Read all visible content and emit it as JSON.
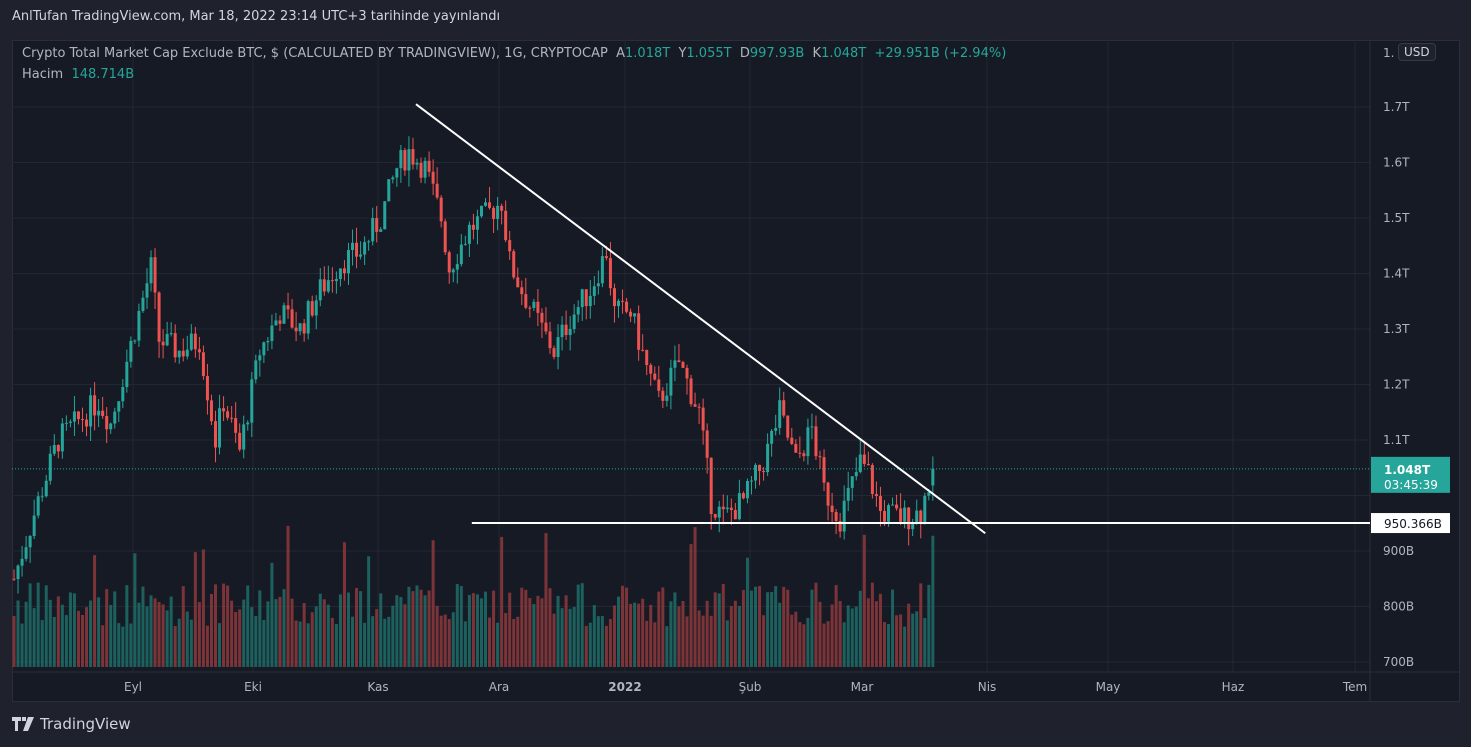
{
  "publish_line": "AnlTufan TradingView.com, Mar 18, 2022 23:14 UTC+3 tarihinde yayınlandı",
  "legend": {
    "symbol": "Crypto Total Market Cap Exclude BTC, $ (CALCULATED BY TRADINGVIEW), 1G, CRYPTOCAP",
    "open_label": "A",
    "open": "1.018T",
    "high_label": "Y",
    "high": "1.055T",
    "low_label": "D",
    "low": "997.93B",
    "close_label": "K",
    "close": "1.048T",
    "change": "+29.951B (+2.94%)",
    "volume_label": "Hacim",
    "volume": "148.714B"
  },
  "price_axis": {
    "currency": "USD",
    "cut_label": "1.",
    "ticks": [
      "1.7T",
      "1.6T",
      "1.5T",
      "1.4T",
      "1.3T",
      "1.2T",
      "1.1T",
      "900B",
      "800B",
      "700B"
    ],
    "last_price": "1.048T",
    "countdown": "03:45:39",
    "level_label": "950.366B"
  },
  "time_axis": {
    "ticks": [
      "Eyl",
      "Eki",
      "Kas",
      "Ara",
      "2022",
      "Şub",
      "Mar",
      "Nis",
      "May",
      "Haz",
      "Tem"
    ]
  },
  "brand": "TradingView",
  "colors": {
    "up": "#26a69a",
    "down": "#ef5350",
    "line": "#ffffff",
    "bg": "#161a25",
    "grid": "#232733"
  },
  "chart_data": {
    "type": "candlestick",
    "title": "Crypto Total Market Cap Exclude BTC",
    "timeframe": "1D",
    "start_date": "2021-08-03",
    "end_date": "2022-03-18",
    "ylim_T": [
      0.66,
      1.8
    ],
    "price_ticks_T": [
      1.7,
      1.6,
      1.5,
      1.4,
      1.3,
      1.2,
      1.1,
      1.0,
      0.9,
      0.8,
      0.7
    ],
    "close_anchors_T": [
      [
        0,
        0.85
      ],
      [
        6,
        0.99
      ],
      [
        11,
        1.1
      ],
      [
        21,
        1.17
      ],
      [
        24,
        1.13
      ],
      [
        30,
        1.3
      ],
      [
        34,
        1.41
      ],
      [
        36,
        1.28
      ],
      [
        41,
        1.26
      ],
      [
        46,
        1.28
      ],
      [
        50,
        1.1
      ],
      [
        52,
        1.17
      ],
      [
        56,
        1.08
      ],
      [
        61,
        1.26
      ],
      [
        66,
        1.33
      ],
      [
        71,
        1.3
      ],
      [
        76,
        1.37
      ],
      [
        81,
        1.42
      ],
      [
        86,
        1.44
      ],
      [
        91,
        1.5
      ],
      [
        95,
        1.59
      ],
      [
        98,
        1.62
      ],
      [
        102,
        1.59
      ],
      [
        106,
        1.5
      ],
      [
        108,
        1.41
      ],
      [
        113,
        1.48
      ],
      [
        118,
        1.51
      ],
      [
        121,
        1.53
      ],
      [
        123,
        1.42
      ],
      [
        126,
        1.37
      ],
      [
        131,
        1.3
      ],
      [
        134,
        1.26
      ],
      [
        138,
        1.32
      ],
      [
        143,
        1.37
      ],
      [
        147,
        1.44
      ],
      [
        149,
        1.33
      ],
      [
        153,
        1.33
      ],
      [
        157,
        1.23
      ],
      [
        160,
        1.17
      ],
      [
        165,
        1.24
      ],
      [
        170,
        1.15
      ],
      [
        173,
        0.99
      ],
      [
        176,
        0.96
      ],
      [
        181,
        0.99
      ],
      [
        186,
        1.06
      ],
      [
        190,
        1.15
      ],
      [
        194,
        1.06
      ],
      [
        198,
        1.12
      ],
      [
        201,
        1.01
      ],
      [
        205,
        0.96
      ],
      [
        210,
        1.06
      ],
      [
        212,
        1.04
      ],
      [
        215,
        0.97
      ],
      [
        221,
        0.96
      ],
      [
        225,
        0.97
      ],
      [
        228,
        1.048
      ]
    ],
    "last_ohlc": {
      "open": 1.018,
      "high": 1.055,
      "low": 0.99793,
      "close": 1.048,
      "volume_B": 148.714
    },
    "trendline": {
      "from": [
        99.75,
        1.705
      ],
      "to": [
        241,
        0.932
      ]
    },
    "horizontal_level": {
      "from_day": 113.6,
      "value_T": 0.950366
    }
  }
}
